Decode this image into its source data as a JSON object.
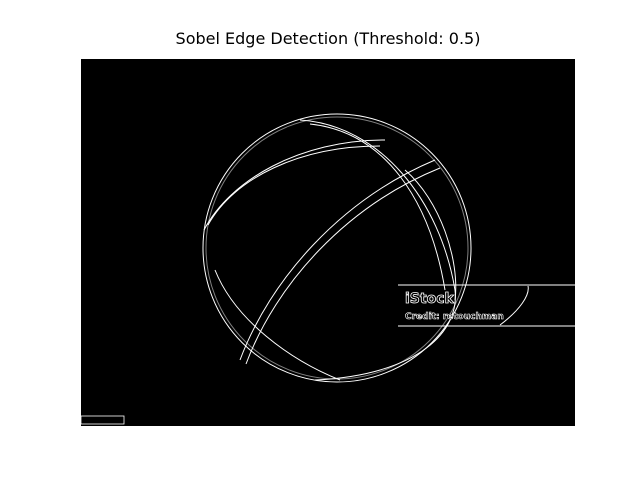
{
  "title": "Sobel Edge Detection (Threshold: 0.5)",
  "image": {
    "watermark": "iStock",
    "credit": "Credit: retouchman"
  }
}
